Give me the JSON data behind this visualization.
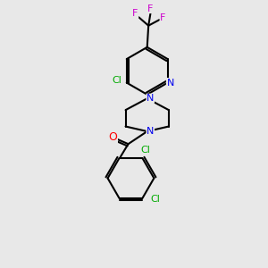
{
  "background_color": "#e8e8e8",
  "bond_color": "#000000",
  "atom_colors": {
    "N": "#0000ee",
    "O": "#ff0000",
    "Cl": "#00aa00",
    "F": "#cc00cc",
    "C": "#000000"
  },
  "font_size": 8.0,
  "line_width": 1.5,
  "fig_size": [
    3.0,
    3.0
  ],
  "dpi": 100,
  "xlim": [
    0,
    10
  ],
  "ylim": [
    0,
    10
  ]
}
